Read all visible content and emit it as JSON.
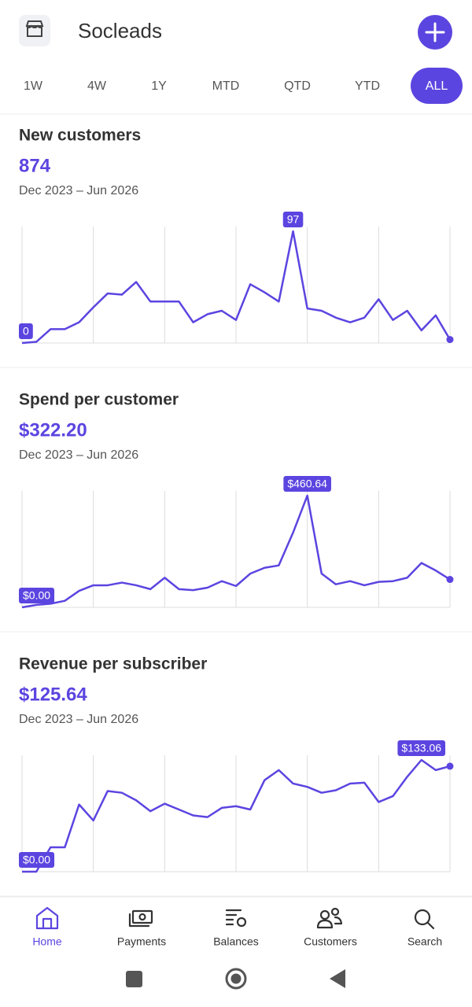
{
  "header": {
    "title": "Socleads"
  },
  "tabs": {
    "items": [
      "1W",
      "4W",
      "1Y",
      "MTD",
      "QTD",
      "YTD",
      "ALL"
    ],
    "selected": 6
  },
  "cards": [
    {
      "title": "New customers",
      "total": "874",
      "period": "Dec 2023 – Jun 2026",
      "chart": {
        "type": "line",
        "color": "#5b45e0",
        "ylim": [
          0,
          97
        ],
        "values": [
          0,
          1,
          12,
          12,
          18,
          31,
          43,
          42,
          53,
          36,
          36,
          36,
          18,
          25,
          28,
          20,
          51,
          44,
          36,
          97,
          30,
          28,
          22,
          18,
          22,
          38,
          20,
          28,
          11,
          24,
          3
        ]
      }
    },
    {
      "title": "Spend per customer",
      "total": "$322.20",
      "period": "Dec 2023 – Jun 2026",
      "chart": {
        "type": "line",
        "color": "#5b45e0",
        "ylim": [
          0,
          460.64
        ],
        "values": [
          0,
          10,
          15,
          27,
          68,
          91,
          91,
          102,
          91,
          75,
          122,
          75,
          71,
          81,
          108,
          88,
          139,
          163,
          173,
          308,
          460.64,
          139,
          95,
          108,
          91,
          105,
          108,
          122,
          183,
          152,
          115
        ],
        "value_labels": [
          "$0.00",
          null,
          null,
          null,
          null,
          null,
          null,
          null,
          null,
          null,
          null,
          null,
          null,
          null,
          null,
          null,
          null,
          null,
          null,
          null,
          "$460.64",
          null,
          null,
          null,
          null,
          null,
          null,
          null,
          null,
          null,
          null
        ]
      }
    },
    {
      "title": "Revenue per subscriber",
      "total": "$125.64",
      "period": "Dec 2023 – Jun 2026",
      "chart": {
        "type": "line",
        "color": "#5b45e0",
        "ylim": [
          0,
          133.06
        ],
        "values": [
          0,
          0,
          29,
          29,
          80,
          61,
          96,
          94,
          85,
          72,
          81,
          74,
          67,
          65,
          76,
          78,
          74,
          109,
          121,
          105,
          101,
          94,
          97,
          105,
          106,
          83,
          90,
          113,
          133.06,
          121,
          125.64
        ],
        "value_labels": [
          "$0.00",
          null,
          null,
          null,
          null,
          null,
          null,
          null,
          null,
          null,
          null,
          null,
          null,
          null,
          null,
          null,
          null,
          null,
          null,
          null,
          null,
          null,
          null,
          null,
          null,
          null,
          null,
          null,
          "$133.06",
          null,
          null
        ]
      }
    }
  ],
  "nav": {
    "items": [
      "Home",
      "Payments",
      "Balances",
      "Customers",
      "Search"
    ],
    "selected": 0
  }
}
